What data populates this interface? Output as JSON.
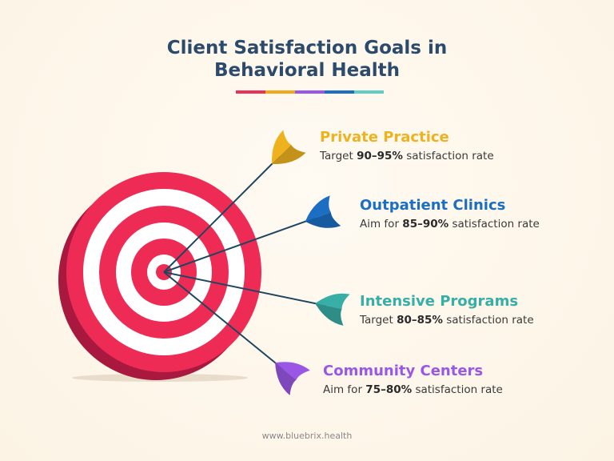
{
  "header": {
    "title_lines": [
      "Client Satisfaction Goals in",
      "Behavioral Health"
    ]
  },
  "goals": [
    {
      "heading": "Private Practice",
      "color": "#efb21f",
      "lead": "Target",
      "range": "90–95%",
      "tail": "satisfaction rate"
    },
    {
      "heading": "Outpatient Clinics",
      "color": "#1b6ec2",
      "lead": "Aim for",
      "range": "85–90%",
      "tail": "satisfaction rate"
    },
    {
      "heading": "Intensive Programs",
      "color": "#37aea6",
      "lead": "Target",
      "range": "80–85%",
      "tail": "satisfaction rate"
    },
    {
      "heading": "Community Centers",
      "color": "#9a57e6",
      "lead": "Aim for",
      "range": "75–80%",
      "tail": "satisfaction rate"
    }
  ],
  "footer": {
    "url": "www.bluebrix.health"
  }
}
